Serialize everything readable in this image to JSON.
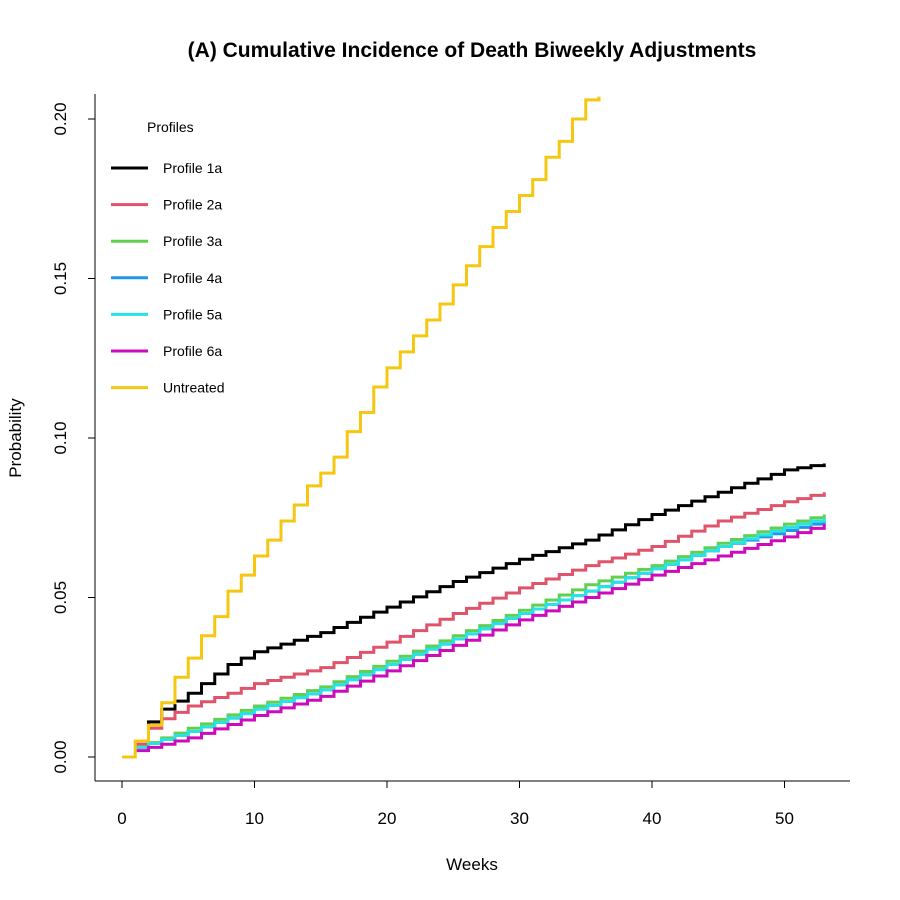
{
  "chart_data": {
    "type": "line",
    "title": "(A) Cumulative Incidence of Death Biweekly Adjustments",
    "xlabel": "Weeks",
    "ylabel": "Probability",
    "xlim": [
      0,
      53
    ],
    "ylim": [
      0,
      0.207
    ],
    "x_ticks": [
      0,
      10,
      20,
      30,
      40,
      50
    ],
    "y_ticks": [
      0.0,
      0.05,
      0.1,
      0.15,
      0.2
    ],
    "x_tick_labels": [
      "0",
      "10",
      "20",
      "30",
      "40",
      "50"
    ],
    "y_tick_labels": [
      "0.00",
      "0.05",
      "0.10",
      "0.15",
      "0.20"
    ],
    "grid": false,
    "step": true,
    "legend": {
      "title": "Profiles",
      "position": "top-left"
    },
    "x": [
      0,
      53
    ],
    "series": [
      {
        "name": "Profile 1a",
        "color": "#000000",
        "start_week": 1,
        "end_week": 53,
        "y_first": 0.005,
        "y_at_week": {
          "1": 0.005,
          "2": 0.011,
          "3": 0.015,
          "5": 0.02,
          "8": 0.029,
          "10": 0.033,
          "15": 0.039,
          "20": 0.047,
          "25": 0.055,
          "30": 0.062,
          "35": 0.068,
          "40": 0.076,
          "45": 0.083,
          "50": 0.09,
          "53": 0.092
        }
      },
      {
        "name": "Profile 2a",
        "color": "#DF536B",
        "start_week": 1,
        "end_week": 53,
        "y_first": 0.004,
        "y_at_week": {
          "1": 0.004,
          "2": 0.009,
          "3": 0.012,
          "5": 0.016,
          "8": 0.02,
          "10": 0.023,
          "15": 0.028,
          "20": 0.036,
          "25": 0.045,
          "30": 0.053,
          "35": 0.06,
          "40": 0.066,
          "45": 0.074,
          "50": 0.08,
          "53": 0.083
        }
      },
      {
        "name": "Profile 3a",
        "color": "#61D04F",
        "start_week": 1,
        "end_week": 53,
        "y_first": 0.003,
        "y_at_week": {
          "1": 0.003,
          "5": 0.009,
          "10": 0.016,
          "15": 0.022,
          "20": 0.03,
          "25": 0.038,
          "30": 0.046,
          "35": 0.054,
          "40": 0.06,
          "45": 0.067,
          "50": 0.073,
          "53": 0.076
        }
      },
      {
        "name": "Profile 4a",
        "color": "#2297E6",
        "start_week": 1,
        "end_week": 53,
        "y_first": 0.003,
        "y_at_week": {
          "1": 0.003,
          "5": 0.008,
          "10": 0.015,
          "15": 0.021,
          "20": 0.029,
          "25": 0.037,
          "30": 0.045,
          "35": 0.052,
          "40": 0.059,
          "45": 0.066,
          "50": 0.071,
          "53": 0.074
        }
      },
      {
        "name": "Profile 5a",
        "color": "#28E2E5",
        "start_week": 1,
        "end_week": 53,
        "y_first": 0.003,
        "y_at_week": {
          "1": 0.003,
          "5": 0.008,
          "10": 0.015,
          "15": 0.021,
          "20": 0.029,
          "25": 0.037,
          "30": 0.045,
          "35": 0.052,
          "40": 0.059,
          "45": 0.066,
          "50": 0.072,
          "53": 0.075
        }
      },
      {
        "name": "Profile 6a",
        "color": "#CD0BBC",
        "start_week": 1,
        "end_week": 53,
        "y_first": 0.002,
        "y_at_week": {
          "1": 0.002,
          "5": 0.006,
          "10": 0.013,
          "15": 0.019,
          "20": 0.027,
          "25": 0.035,
          "30": 0.043,
          "35": 0.05,
          "40": 0.057,
          "45": 0.063,
          "50": 0.069,
          "53": 0.073
        }
      },
      {
        "name": "Untreated",
        "color": "#F5C710",
        "start_week": 0,
        "end_week": 36,
        "y_first": 0.0,
        "y_at_week": {
          "0": 0.0,
          "1": 0.005,
          "2": 0.01,
          "3": 0.017,
          "4": 0.025,
          "5": 0.031,
          "6": 0.038,
          "7": 0.044,
          "8": 0.052,
          "9": 0.057,
          "10": 0.063,
          "11": 0.068,
          "12": 0.074,
          "13": 0.079,
          "14": 0.085,
          "15": 0.089,
          "16": 0.094,
          "17": 0.102,
          "18": 0.108,
          "19": 0.116,
          "20": 0.122,
          "21": 0.127,
          "22": 0.132,
          "23": 0.137,
          "24": 0.142,
          "25": 0.148,
          "26": 0.154,
          "27": 0.16,
          "28": 0.166,
          "29": 0.171,
          "30": 0.176,
          "31": 0.181,
          "32": 0.188,
          "33": 0.193,
          "34": 0.2,
          "35": 0.206,
          "36": 0.207
        }
      }
    ]
  }
}
